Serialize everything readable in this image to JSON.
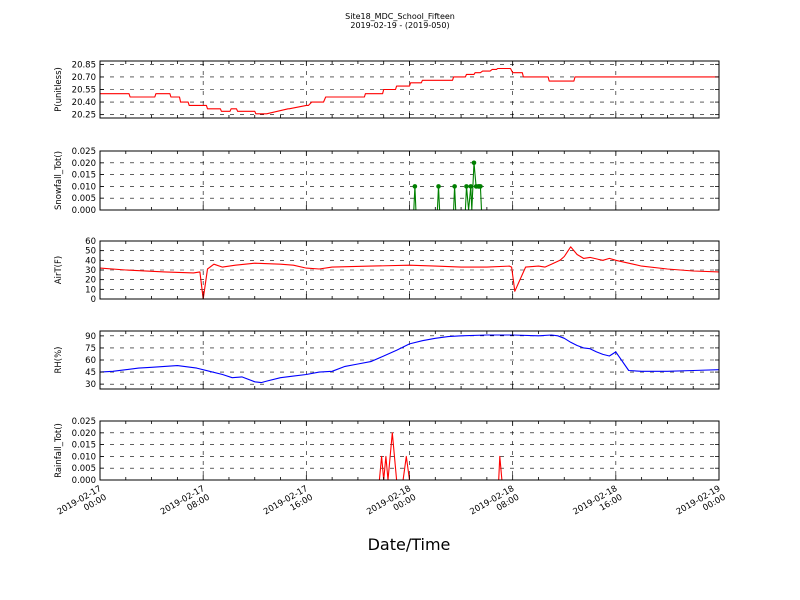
{
  "figure": {
    "title": "Site18_MDC_School_Fifteen",
    "subtitle": "2019-02-19 - (2019-050)",
    "xlabel": "Date/Time"
  },
  "chart_data": [
    {
      "type": "line",
      "ylabel": "P(unitless)",
      "color": "#ff0000",
      "ylim": [
        20.21,
        20.89
      ],
      "yticks": [
        20.25,
        20.4,
        20.55,
        20.7,
        20.85
      ],
      "ytick_labels": [
        "20.25",
        "20.40",
        "20.55",
        "20.70",
        "20.85"
      ],
      "xlim": [
        "2019-02-17 00:00",
        "2019-02-19 00:00"
      ],
      "x": [
        "2019-02-17 00:00",
        "2019-02-17 02:15",
        "2019-02-17 02:20",
        "2019-02-17 04:15",
        "2019-02-17 04:20",
        "2019-02-17 05:25",
        "2019-02-17 05:30",
        "2019-02-17 06:10",
        "2019-02-17 06:15",
        "2019-02-17 06:50",
        "2019-02-17 06:55",
        "2019-02-17 08:15",
        "2019-02-17 08:20",
        "2019-02-17 09:20",
        "2019-02-17 09:25",
        "2019-02-17 10:05",
        "2019-02-17 10:10",
        "2019-02-17 10:35",
        "2019-02-17 10:40",
        "2019-02-17 12:00",
        "2019-02-17 12:05",
        "2019-02-17 12:35",
        "2019-02-17 12:50",
        "2019-02-17 12:55",
        "2019-02-17 14:35",
        "2019-02-17 14:40",
        "2019-02-17 16:00",
        "2019-02-17 16:10",
        "2019-02-17 16:25",
        "2019-02-17 17:20",
        "2019-02-17 17:30",
        "2019-02-17 20:30",
        "2019-02-17 20:35",
        "2019-02-17 21:55",
        "2019-02-17 22:00",
        "2019-02-17 22:55",
        "2019-02-17 23:00",
        "2019-02-18 00:00",
        "2019-02-18 00:05",
        "2019-02-18 00:55",
        "2019-02-18 01:00",
        "2019-02-18 03:20",
        "2019-02-18 03:25",
        "2019-02-18 04:20",
        "2019-02-18 04:25",
        "2019-02-18 05:00",
        "2019-02-18 05:05",
        "2019-02-18 05:30",
        "2019-02-18 05:40",
        "2019-02-18 06:15",
        "2019-02-18 06:25",
        "2019-02-18 06:45",
        "2019-02-18 06:50",
        "2019-02-18 07:10",
        "2019-02-18 07:15",
        "2019-02-18 07:50",
        "2019-02-18 08:00",
        "2019-02-18 08:45",
        "2019-02-18 08:50",
        "2019-02-18 10:45",
        "2019-02-18 10:50",
        "2019-02-18 12:45",
        "2019-02-18 12:50",
        "2019-02-18 14:45",
        "2019-02-18 14:50",
        "2019-02-18 17:55",
        "2019-02-18 18:05",
        "2019-02-18 18:10",
        "2019-02-18 19:00",
        "2019-02-18 19:05",
        "2019-02-19 00:00"
      ],
      "y": [
        20.5,
        20.5,
        20.46,
        20.46,
        20.5,
        20.5,
        20.46,
        20.46,
        20.4,
        20.4,
        20.36,
        20.36,
        20.32,
        20.32,
        20.29,
        20.29,
        20.32,
        20.32,
        20.29,
        20.29,
        20.26,
        20.26,
        20.26,
        20.26,
        20.32,
        20.32,
        20.36,
        20.36,
        20.4,
        20.4,
        20.46,
        20.46,
        20.5,
        20.5,
        20.55,
        20.55,
        20.59,
        20.59,
        20.63,
        20.63,
        20.66,
        20.66,
        20.7,
        20.7,
        20.73,
        20.73,
        20.75,
        20.75,
        20.77,
        20.77,
        20.79,
        20.79,
        20.8,
        20.8,
        20.8,
        20.8,
        20.75,
        20.75,
        20.7,
        20.7,
        20.65,
        20.65,
        20.7,
        20.7,
        20.7,
        20.7,
        20.7,
        20.7,
        20.7,
        20.7,
        20.7
      ],
      "grid": true
    },
    {
      "type": "line",
      "ylabel": "Snowfall_Tot()",
      "color": "#008000",
      "markers": true,
      "ylim": [
        0,
        0.025
      ],
      "yticks": [
        0,
        0.005,
        0.01,
        0.015,
        0.02,
        0.025
      ],
      "ytick_labels": [
        "0.000",
        "0.005",
        "0.010",
        "0.015",
        "0.020",
        "0.025"
      ],
      "xlim": [
        "2019-02-17 00:00",
        "2019-02-19 00:00"
      ],
      "x": [
        "2019-02-17 00:00",
        "2019-02-18 00:20",
        "2019-02-18 00:25",
        "2019-02-18 00:30",
        "2019-02-18 02:10",
        "2019-02-18 02:15",
        "2019-02-18 02:20",
        "2019-02-18 03:25",
        "2019-02-18 03:30",
        "2019-02-18 03:35",
        "2019-02-18 04:20",
        "2019-02-18 04:25",
        "2019-02-18 04:35",
        "2019-02-18 04:45",
        "2019-02-18 04:50",
        "2019-02-18 05:00",
        "2019-02-18 05:10",
        "2019-02-18 05:20",
        "2019-02-18 05:25",
        "2019-02-18 05:30",
        "2019-02-18 05:35",
        "2019-02-19 00:00"
      ],
      "y": [
        0,
        0,
        0.01,
        0,
        0,
        0.01,
        0,
        0,
        0.01,
        0,
        0,
        0.01,
        0,
        0.01,
        0,
        0.02,
        0.01,
        0.01,
        0.01,
        0.01,
        0,
        0
      ],
      "grid": true
    },
    {
      "type": "line",
      "ylabel": "AirT(F)",
      "color": "#ff0000",
      "ylim": [
        0,
        60
      ],
      "yticks": [
        0,
        10,
        20,
        30,
        40,
        50,
        60
      ],
      "ytick_labels": [
        "0",
        "10",
        "20",
        "30",
        "40",
        "50",
        "60"
      ],
      "xlim": [
        "2019-02-17 00:00",
        "2019-02-19 00:00"
      ],
      "x": [
        "2019-02-17 00:00",
        "2019-02-17 02:00",
        "2019-02-17 05:00",
        "2019-02-17 07:15",
        "2019-02-17 07:45",
        "2019-02-17 08:00",
        "2019-02-17 08:20",
        "2019-02-17 08:50",
        "2019-02-17 09:30",
        "2019-02-17 10:30",
        "2019-02-17 12:00",
        "2019-02-17 14:00",
        "2019-02-17 15:00",
        "2019-02-17 16:00",
        "2019-02-17 17:00",
        "2019-02-17 18:00",
        "2019-02-17 21:00",
        "2019-02-18 00:00",
        "2019-02-18 02:00",
        "2019-02-18 04:00",
        "2019-02-18 06:00",
        "2019-02-18 07:45",
        "2019-02-18 07:55",
        "2019-02-18 08:10",
        "2019-02-18 09:00",
        "2019-02-18 10:00",
        "2019-02-18 10:30",
        "2019-02-18 11:00",
        "2019-02-18 11:40",
        "2019-02-18 12:00",
        "2019-02-18 12:30",
        "2019-02-18 13:00",
        "2019-02-18 13:30",
        "2019-02-18 14:00",
        "2019-02-18 14:40",
        "2019-02-18 15:00",
        "2019-02-18 15:30",
        "2019-02-18 16:00",
        "2019-02-18 17:00",
        "2019-02-18 18:00",
        "2019-02-18 20:00",
        "2019-02-18 22:00",
        "2019-02-19 00:00"
      ],
      "y": [
        32,
        30,
        28,
        27,
        28,
        0,
        31,
        36,
        33,
        35,
        37,
        36,
        35,
        32,
        31,
        33,
        34,
        35,
        34,
        33,
        33,
        34,
        33,
        8,
        33,
        34,
        33,
        36,
        40,
        44,
        54,
        46,
        42,
        43,
        41,
        40,
        42,
        40,
        37,
        34,
        31,
        29,
        28
      ],
      "grid": true
    },
    {
      "type": "line",
      "ylabel": "RH(%)",
      "color": "#0000ff",
      "ylim": [
        24,
        96
      ],
      "yticks": [
        30,
        45,
        60,
        75,
        90
      ],
      "ytick_labels": [
        "30",
        "45",
        "60",
        "75",
        "90"
      ],
      "xlim": [
        "2019-02-17 00:00",
        "2019-02-19 00:00"
      ],
      "x": [
        "2019-02-17 00:00",
        "2019-02-17 01:00",
        "2019-02-17 02:00",
        "2019-02-17 03:00",
        "2019-02-17 04:00",
        "2019-02-17 05:00",
        "2019-02-17 06:00",
        "2019-02-17 07:30",
        "2019-02-17 08:30",
        "2019-02-17 09:30",
        "2019-02-17 10:15",
        "2019-02-17 11:00",
        "2019-02-17 12:00",
        "2019-02-17 12:30",
        "2019-02-17 13:00",
        "2019-02-17 14:00",
        "2019-02-17 15:00",
        "2019-02-17 16:00",
        "2019-02-17 17:00",
        "2019-02-17 18:00",
        "2019-02-17 19:00",
        "2019-02-17 20:00",
        "2019-02-17 21:00",
        "2019-02-17 22:00",
        "2019-02-17 23:00",
        "2019-02-18 00:00",
        "2019-02-18 01:00",
        "2019-02-18 02:00",
        "2019-02-18 03:00",
        "2019-02-18 04:00",
        "2019-02-18 06:00",
        "2019-02-18 08:00",
        "2019-02-18 10:00",
        "2019-02-18 11:00",
        "2019-02-18 11:30",
        "2019-02-18 12:00",
        "2019-02-18 12:30",
        "2019-02-18 13:00",
        "2019-02-18 13:30",
        "2019-02-18 14:00",
        "2019-02-18 14:30",
        "2019-02-18 15:00",
        "2019-02-18 15:30",
        "2019-02-18 16:00",
        "2019-02-18 17:00",
        "2019-02-18 18:00",
        "2019-02-18 20:00",
        "2019-02-18 22:00",
        "2019-02-19 00:00"
      ],
      "y": [
        45,
        46,
        48,
        50,
        51,
        52,
        53,
        50,
        46,
        42,
        38,
        39,
        33,
        32,
        34,
        38,
        40,
        42,
        45,
        46,
        52,
        55,
        58,
        65,
        72,
        80,
        84,
        87,
        89,
        90,
        91,
        91,
        90,
        91,
        90,
        87,
        82,
        78,
        75,
        74,
        70,
        67,
        65,
        70,
        47,
        46,
        46,
        47,
        48
      ],
      "grid": true
    },
    {
      "type": "line",
      "ylabel": "Rainfall_Tot()",
      "color": "#ff0000",
      "ylim": [
        0,
        0.025
      ],
      "yticks": [
        0,
        0.005,
        0.01,
        0.015,
        0.02,
        0.025
      ],
      "ytick_labels": [
        "0.000",
        "0.005",
        "0.010",
        "0.015",
        "0.020",
        "0.025"
      ],
      "xlim": [
        "2019-02-17 00:00",
        "2019-02-19 00:00"
      ],
      "x": [
        "2019-02-17 00:00",
        "2019-02-17 21:40",
        "2019-02-17 21:50",
        "2019-02-17 22:00",
        "2019-02-17 22:10",
        "2019-02-17 22:20",
        "2019-02-17 22:40",
        "2019-02-17 23:00",
        "2019-02-17 23:05",
        "2019-02-17 23:30",
        "2019-02-17 23:45",
        "2019-02-18 00:00",
        "2019-02-18 00:10",
        "2019-02-18 06:55",
        "2019-02-18 07:00",
        "2019-02-18 07:10",
        "2019-02-19 00:00"
      ],
      "y": [
        0,
        0,
        0.01,
        0,
        0.01,
        0,
        0.02,
        0,
        0,
        0,
        0.01,
        0,
        0,
        0,
        0.01,
        0,
        0
      ],
      "grid": true
    }
  ],
  "xticks": {
    "labels": [
      [
        "2019-02-17",
        "00:00"
      ],
      [
        "2019-02-17",
        "08:00"
      ],
      [
        "2019-02-17",
        "16:00"
      ],
      [
        "2019-02-18",
        "00:00"
      ],
      [
        "2019-02-18",
        "08:00"
      ],
      [
        "2019-02-18",
        "16:00"
      ],
      [
        "2019-02-19",
        "00:00"
      ]
    ],
    "values": [
      "2019-02-17 00:00",
      "2019-02-17 08:00",
      "2019-02-17 16:00",
      "2019-02-18 00:00",
      "2019-02-18 08:00",
      "2019-02-18 16:00",
      "2019-02-19 00:00"
    ]
  }
}
